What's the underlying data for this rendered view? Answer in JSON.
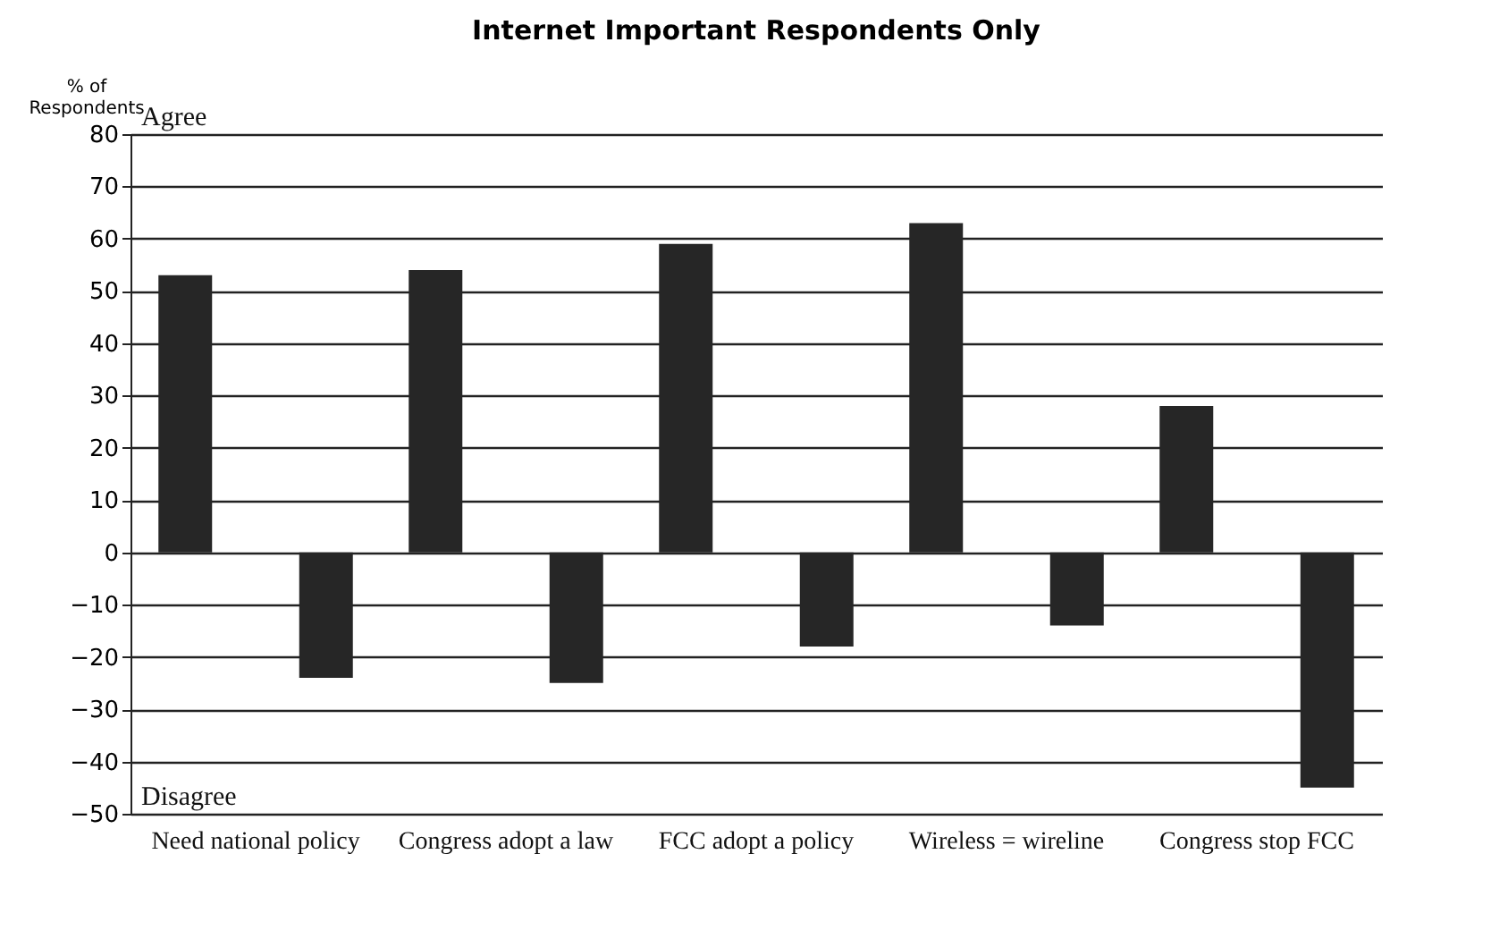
{
  "chart_data": {
    "type": "bar",
    "title": "Internet Important Respondents Only",
    "ylabel": "% of Respondents",
    "categories": [
      "Need national policy",
      "Congress adopt a law",
      "FCC adopt a policy",
      "Wireless = wireline",
      "Congress stop FCC"
    ],
    "series": [
      {
        "color": "#262626",
        "values": [
          53,
          54,
          59,
          63,
          28
        ]
      },
      {
        "color": "#262626",
        "values": [
          -24,
          -25,
          -18,
          -14,
          -45
        ]
      }
    ],
    "ylim": [
      -50,
      80
    ],
    "yticks": [
      -50,
      -40,
      -30,
      -20,
      -10,
      0,
      10,
      20,
      30,
      40,
      50,
      60,
      70,
      80
    ],
    "grid": "y",
    "annotations": [
      "Agree",
      "Disagree"
    ]
  }
}
